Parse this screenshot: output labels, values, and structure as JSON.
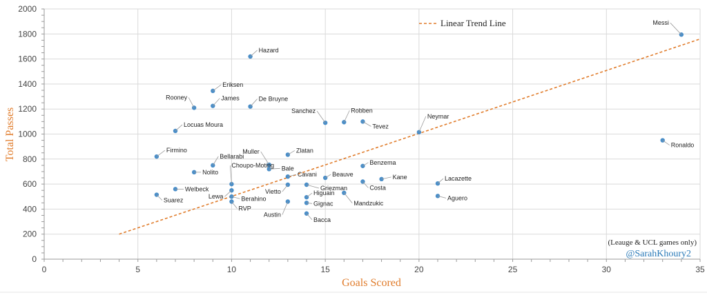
{
  "chart_data": {
    "type": "scatter",
    "xlabel": "Goals Scored",
    "ylabel": "Total Passes",
    "xlim": [
      0,
      35
    ],
    "ylim": [
      0,
      2000
    ],
    "xticks": [
      0,
      5,
      10,
      15,
      20,
      25,
      30,
      35
    ],
    "yticks": [
      0,
      200,
      400,
      600,
      800,
      1000,
      1200,
      1400,
      1600,
      1800,
      2000
    ],
    "grid": true,
    "legend": {
      "label": "Linear Trend Line",
      "position": "top-center"
    },
    "trendline": {
      "x": [
        4,
        35
      ],
      "y": [
        200,
        1760
      ],
      "color": "#e07b2a"
    },
    "point_color": "#4a8ec8",
    "points": [
      {
        "name": "Messi",
        "x": 34,
        "y": 1795
      },
      {
        "name": "Ronaldo",
        "x": 33,
        "y": 950
      },
      {
        "name": "Hazard",
        "x": 11,
        "y": 1620
      },
      {
        "name": "Eriksen",
        "x": 9,
        "y": 1345
      },
      {
        "name": "Rooney",
        "x": 8,
        "y": 1210
      },
      {
        "name": "James",
        "x": 9,
        "y": 1225
      },
      {
        "name": "De Bruyne",
        "x": 11,
        "y": 1220
      },
      {
        "name": "Locuas Moura",
        "x": 7,
        "y": 1025
      },
      {
        "name": "Sanchez",
        "x": 15,
        "y": 1090
      },
      {
        "name": "Robben",
        "x": 16,
        "y": 1095
      },
      {
        "name": "Tevez",
        "x": 17,
        "y": 1100
      },
      {
        "name": "Neymar",
        "x": 20,
        "y": 1015
      },
      {
        "name": "Firmino",
        "x": 6,
        "y": 820
      },
      {
        "name": "Bellarabi",
        "x": 9,
        "y": 750
      },
      {
        "name": "Muller",
        "x": 12,
        "y": 755
      },
      {
        "name": "Zlatan",
        "x": 13,
        "y": 835
      },
      {
        "name": "Bale",
        "x": 12,
        "y": 720
      },
      {
        "name": "Benzema",
        "x": 17,
        "y": 745
      },
      {
        "name": "Nolito",
        "x": 8,
        "y": 695
      },
      {
        "name": "Choupo-Moting",
        "x": 10,
        "y": 600
      },
      {
        "name": "Cavani",
        "x": 13,
        "y": 660
      },
      {
        "name": "Beauve",
        "x": 15,
        "y": 650
      },
      {
        "name": "Kane",
        "x": 18,
        "y": 640
      },
      {
        "name": "Costa",
        "x": 17,
        "y": 620
      },
      {
        "name": "Lacazette",
        "x": 21,
        "y": 605
      },
      {
        "name": "Welbeck",
        "x": 7,
        "y": 560
      },
      {
        "name": "Lewa",
        "x": 10,
        "y": 550
      },
      {
        "name": "Griezman",
        "x": 14,
        "y": 595
      },
      {
        "name": "Vietto",
        "x": 13,
        "y": 595
      },
      {
        "name": "Mandzukic",
        "x": 16,
        "y": 530
      },
      {
        "name": "Higuain",
        "x": 14,
        "y": 495
      },
      {
        "name": "Suarez",
        "x": 6,
        "y": 515
      },
      {
        "name": "Berahino",
        "x": 10,
        "y": 500
      },
      {
        "name": "Aguero",
        "x": 21,
        "y": 505
      },
      {
        "name": "RVP",
        "x": 10,
        "y": 460
      },
      {
        "name": "Austin",
        "x": 13,
        "y": 460
      },
      {
        "name": "Gignac",
        "x": 14,
        "y": 450
      },
      {
        "name": "Bacca",
        "x": 14,
        "y": 365
      }
    ]
  },
  "footnote": "(Leauge & UCL games only)",
  "credit": "@SarahKhoury2"
}
